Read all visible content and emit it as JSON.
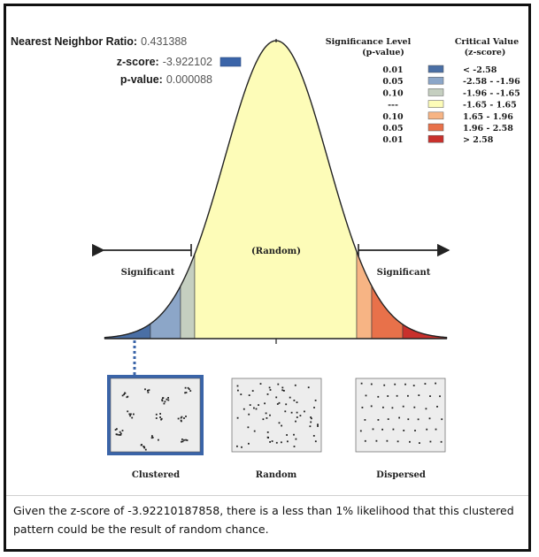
{
  "stats": {
    "nnr_label": "Nearest Neighbor Ratio:",
    "nnr_value": "0.431388",
    "z_label": "z-score:",
    "z_value": "-3.922102",
    "p_label": "p-value:",
    "p_value": "0.000088"
  },
  "legend": {
    "sig_header_1": "Significance Level",
    "sig_header_2": "(p-value)",
    "crit_header_1": "Critical Value",
    "crit_header_2": "(z-score)",
    "rows": [
      {
        "p": "0.01",
        "z": "< -2.58",
        "color": "#4a6fa5"
      },
      {
        "p": "0.05",
        "z": "-2.58 - -1.96",
        "color": "#8ca6c8"
      },
      {
        "p": "0.10",
        "z": "-1.96 - -1.65",
        "color": "#c5cfc0"
      },
      {
        "p": "---",
        "z": "-1.65 - 1.65",
        "color": "#fdfcb8"
      },
      {
        "p": "0.10",
        "z": "1.65 - 1.96",
        "color": "#f7b484"
      },
      {
        "p": "0.05",
        "z": "1.96 - 2.58",
        "color": "#e8714a"
      },
      {
        "p": "0.01",
        "z": "> 2.58",
        "color": "#c9302c"
      }
    ]
  },
  "curve": {
    "random_label": "(Random)",
    "left_label": "Significant",
    "right_label": "Significant",
    "highlight_color": "#3a64a8"
  },
  "panels": {
    "clustered": "Clustered",
    "random": "Random",
    "dispersed": "Dispersed"
  },
  "caption": "Given the z-score of -3.92210187858, there is a less than 1% likelihood that this clustered pattern could be the result of random chance."
}
